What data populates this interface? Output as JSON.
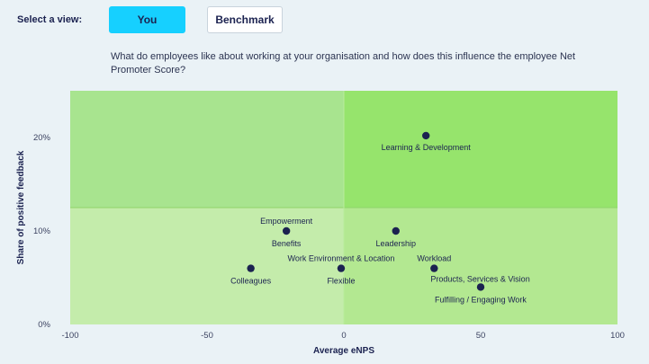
{
  "controls": {
    "select_view_label": "Select a view:",
    "you_label": "You",
    "benchmark_label": "Benchmark",
    "active": "You",
    "active_color": "#16d0ff"
  },
  "question": "What do employees like about working at your organisation and how does this influence the employee Net Promoter Score?",
  "chart_data": {
    "type": "scatter",
    "title": "",
    "xlabel": "Average eNPS",
    "ylabel": "Share of positive feedback",
    "xlim": [
      -100,
      100
    ],
    "ylim": [
      0,
      25
    ],
    "x_ticks": [
      -100,
      -50,
      0,
      50,
      100
    ],
    "x_tick_labels": [
      "-100",
      "-50",
      "0",
      "50",
      "100"
    ],
    "y_ticks": [
      0,
      10,
      20
    ],
    "y_tick_labels": [
      "0%",
      "10%",
      "20%"
    ],
    "quadrant_split": {
      "x": 0,
      "y": 12.5
    },
    "quadrant_colors": {
      "top_left": "#a8e48f",
      "top_right": "#96e46c",
      "bottom_left": "#c4ecab",
      "bottom_right": "#b3e891"
    },
    "point_color": "#1b2250",
    "points": [
      {
        "name": "Learning & Development",
        "x": 30,
        "y": 20.2
      },
      {
        "name": "Empowerment",
        "x": -21,
        "y": 10
      },
      {
        "name": "Benefits",
        "x": -21,
        "y": 10
      },
      {
        "name": "Leadership",
        "x": 19,
        "y": 10
      },
      {
        "name": "Colleagues",
        "x": -34,
        "y": 6
      },
      {
        "name": "Work Environment & Location",
        "x": -1,
        "y": 6
      },
      {
        "name": "Flexible",
        "x": -1,
        "y": 6
      },
      {
        "name": "Workload",
        "x": 33,
        "y": 6
      },
      {
        "name": "Products, Services & Vision",
        "x": 33,
        "y": 6
      },
      {
        "name": "Fulfilling / Engaging Work",
        "x": 50,
        "y": 4
      }
    ]
  }
}
